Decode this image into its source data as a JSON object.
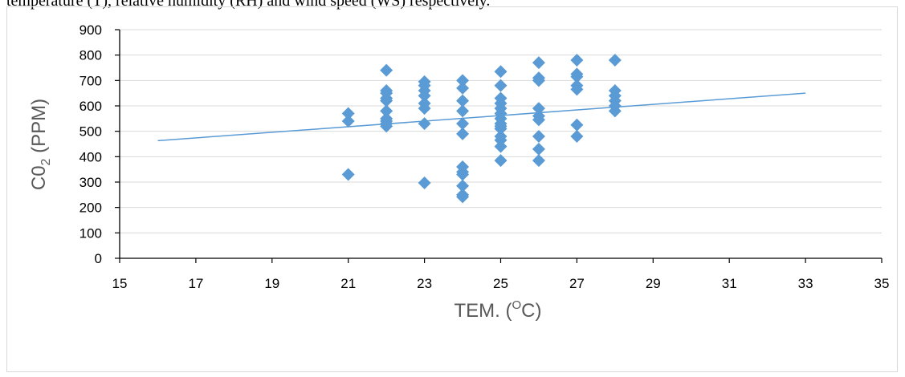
{
  "page": {
    "top_text": "temperature (T), relative humidity (RH) and wind speed (WS) respectively."
  },
  "chart_data": {
    "type": "scatter",
    "title": "",
    "xlabel": "TEM. (OC)",
    "xlabel_parts": {
      "before": "TEM. (",
      "sup": "O",
      "after": "C)"
    },
    "ylabel": "C02 (PPM)",
    "ylabel_parts": {
      "before": "C0",
      "sub": "2",
      "after": " (PPM)"
    },
    "xlim": [
      15,
      35
    ],
    "ylim": [
      0,
      900
    ],
    "x_ticks": [
      "15",
      "17",
      "19",
      "21",
      "23",
      "25",
      "27",
      "29",
      "31",
      "33",
      "35"
    ],
    "y_ticks": [
      "0",
      "100",
      "200",
      "300",
      "400",
      "500",
      "600",
      "700",
      "800",
      "900"
    ],
    "grid": {
      "horizontal": true,
      "vertical": false
    },
    "marker_color": "#5b9bd5",
    "line_color": "#5b9bd5",
    "trendline": {
      "x": [
        16,
        33
      ],
      "y": [
        463,
        650
      ]
    },
    "points": [
      {
        "x": 21,
        "y": 570
      },
      {
        "x": 21,
        "y": 540
      },
      {
        "x": 21,
        "y": 330
      },
      {
        "x": 22,
        "y": 740
      },
      {
        "x": 22,
        "y": 660
      },
      {
        "x": 22,
        "y": 650
      },
      {
        "x": 22,
        "y": 630
      },
      {
        "x": 22,
        "y": 620
      },
      {
        "x": 22,
        "y": 580
      },
      {
        "x": 22,
        "y": 550
      },
      {
        "x": 22,
        "y": 540
      },
      {
        "x": 22,
        "y": 530
      },
      {
        "x": 22,
        "y": 520
      },
      {
        "x": 23,
        "y": 695
      },
      {
        "x": 23,
        "y": 680
      },
      {
        "x": 23,
        "y": 660
      },
      {
        "x": 23,
        "y": 640
      },
      {
        "x": 23,
        "y": 610
      },
      {
        "x": 23,
        "y": 590
      },
      {
        "x": 23,
        "y": 530
      },
      {
        "x": 23,
        "y": 297
      },
      {
        "x": 24,
        "y": 700
      },
      {
        "x": 24,
        "y": 670
      },
      {
        "x": 24,
        "y": 620
      },
      {
        "x": 24,
        "y": 580
      },
      {
        "x": 24,
        "y": 530
      },
      {
        "x": 24,
        "y": 490
      },
      {
        "x": 24,
        "y": 360
      },
      {
        "x": 24,
        "y": 340
      },
      {
        "x": 24,
        "y": 330
      },
      {
        "x": 24,
        "y": 285
      },
      {
        "x": 24,
        "y": 250
      },
      {
        "x": 24,
        "y": 242
      },
      {
        "x": 25,
        "y": 735
      },
      {
        "x": 25,
        "y": 680
      },
      {
        "x": 25,
        "y": 630
      },
      {
        "x": 25,
        "y": 610
      },
      {
        "x": 25,
        "y": 590
      },
      {
        "x": 25,
        "y": 570
      },
      {
        "x": 25,
        "y": 550
      },
      {
        "x": 25,
        "y": 530
      },
      {
        "x": 25,
        "y": 520
      },
      {
        "x": 25,
        "y": 510
      },
      {
        "x": 25,
        "y": 480
      },
      {
        "x": 25,
        "y": 465
      },
      {
        "x": 25,
        "y": 440
      },
      {
        "x": 25,
        "y": 385
      },
      {
        "x": 26,
        "y": 770
      },
      {
        "x": 26,
        "y": 710
      },
      {
        "x": 26,
        "y": 700
      },
      {
        "x": 26,
        "y": 590
      },
      {
        "x": 26,
        "y": 560
      },
      {
        "x": 26,
        "y": 545
      },
      {
        "x": 26,
        "y": 480
      },
      {
        "x": 26,
        "y": 430
      },
      {
        "x": 26,
        "y": 385
      },
      {
        "x": 27,
        "y": 780
      },
      {
        "x": 27,
        "y": 725
      },
      {
        "x": 27,
        "y": 715
      },
      {
        "x": 27,
        "y": 680
      },
      {
        "x": 27,
        "y": 665
      },
      {
        "x": 27,
        "y": 525
      },
      {
        "x": 27,
        "y": 480
      },
      {
        "x": 28,
        "y": 780
      },
      {
        "x": 28,
        "y": 660
      },
      {
        "x": 28,
        "y": 640
      },
      {
        "x": 28,
        "y": 620
      },
      {
        "x": 28,
        "y": 600
      },
      {
        "x": 28,
        "y": 580
      }
    ]
  }
}
